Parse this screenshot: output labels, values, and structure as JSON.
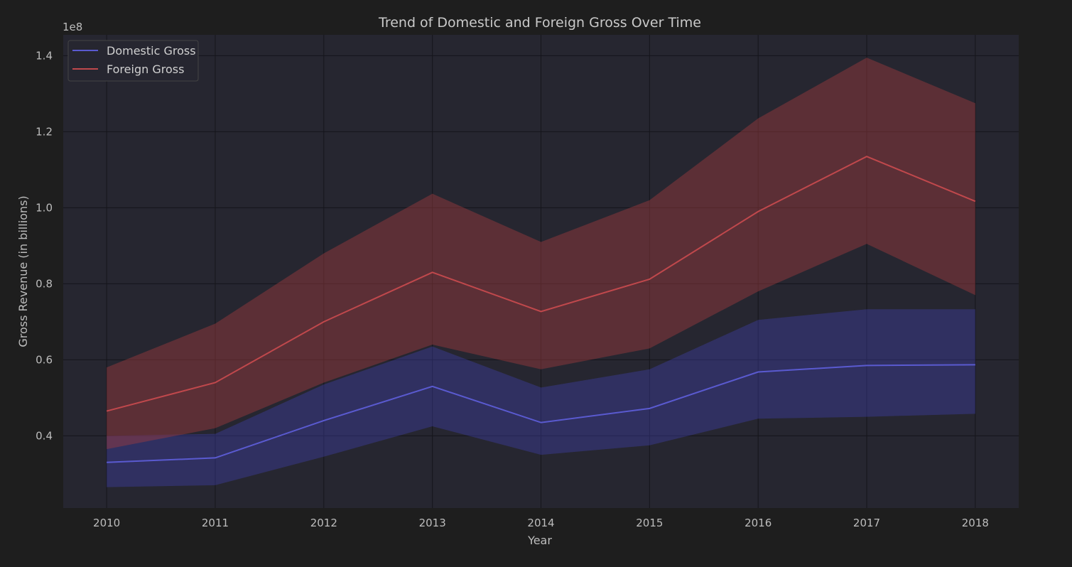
{
  "chart_data": {
    "type": "line",
    "title": "Trend of Domestic and Foreign Gross Over Time",
    "xlabel": "Year",
    "ylabel": "Gross Revenue (in billions)",
    "y_offset_label": "1e8",
    "x": [
      2010,
      2011,
      2012,
      2013,
      2014,
      2015,
      2016,
      2017,
      2018
    ],
    "x_tick_labels": [
      "2010",
      "2011",
      "2012",
      "2013",
      "2014",
      "2015",
      "2016",
      "2017",
      "2018"
    ],
    "xlim": [
      2009.6,
      2018.4
    ],
    "ylim": [
      0.21,
      1.455
    ],
    "y_ticks": [
      0.4,
      0.6,
      0.8,
      1.0,
      1.2,
      1.4
    ],
    "y_tick_labels": [
      "0.4",
      "0.6",
      "0.8",
      "1.0",
      "1.2",
      "1.4"
    ],
    "grid": true,
    "legend_position": "upper-left",
    "series": [
      {
        "name": "Domestic Gross",
        "color": "#5a5ad0",
        "values": [
          0.33,
          0.342,
          0.44,
          0.53,
          0.435,
          0.472,
          0.568,
          0.585,
          0.587
        ],
        "ci_lower": [
          0.265,
          0.27,
          0.345,
          0.425,
          0.35,
          0.375,
          0.445,
          0.45,
          0.458
        ],
        "ci_upper": [
          0.4,
          0.405,
          0.535,
          0.635,
          0.527,
          0.575,
          0.705,
          0.733,
          0.733
        ]
      },
      {
        "name": "Foreign Gross",
        "color": "#c0484c",
        "values": [
          0.465,
          0.54,
          0.7,
          0.83,
          0.727,
          0.812,
          0.99,
          1.135,
          1.017
        ],
        "ci_lower": [
          0.365,
          0.42,
          0.54,
          0.64,
          0.575,
          0.63,
          0.78,
          0.905,
          0.77
        ],
        "ci_upper": [
          0.58,
          0.695,
          0.88,
          1.037,
          0.91,
          1.02,
          1.235,
          1.395,
          1.275
        ]
      }
    ]
  }
}
